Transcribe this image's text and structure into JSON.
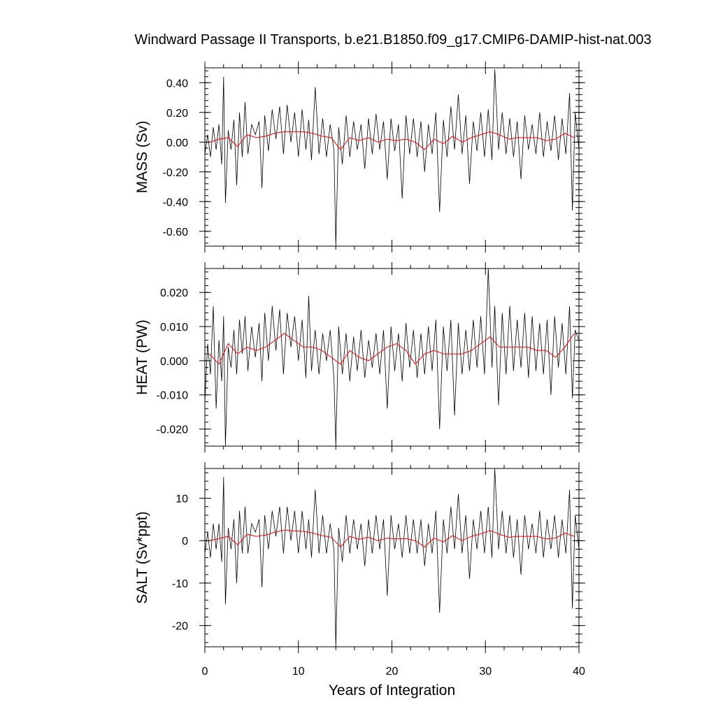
{
  "title": "Windward Passage II Transports, b.e21.B1850.f09_g17.CMIP6-DAMIP-hist-nat.003",
  "xlabel": "Years of Integration",
  "colors": {
    "raw": "#000000",
    "smooth": "#ff0000"
  },
  "chart_data": [
    {
      "type": "line",
      "ylabel": "MASS (Sv)",
      "xlim": [
        0,
        40
      ],
      "ylim": [
        -0.7,
        0.5
      ],
      "xticks": [
        0,
        10,
        20,
        30,
        40
      ],
      "yticks": [
        0.4,
        0.2,
        0.0,
        -0.2,
        -0.4,
        -0.6
      ],
      "ytick_labels": [
        "0.40",
        "0.20",
        "0.00",
        "-0.20",
        "-0.40",
        "-0.60"
      ],
      "yminor_step": 0.04,
      "series": [
        {
          "values_sampling": "monthly, estimated",
          "x": [
            0.0,
            0.3,
            0.6,
            0.9,
            1.2,
            1.5,
            1.8,
            2.0,
            2.2,
            2.5,
            2.8,
            3.1,
            3.4,
            3.7,
            4.0,
            4.3,
            4.6,
            5.0,
            5.4,
            5.8,
            6.1,
            6.4,
            6.8,
            7.2,
            7.6,
            8.0,
            8.4,
            8.8,
            9.2,
            9.6,
            10.0,
            10.4,
            10.8,
            11.1,
            11.4,
            11.8,
            12.2,
            12.6,
            13.0,
            13.4,
            13.8,
            14.0,
            14.3,
            14.7,
            15.1,
            15.5,
            15.9,
            16.3,
            16.7,
            17.1,
            17.5,
            17.9,
            18.3,
            18.7,
            19.1,
            19.5,
            19.9,
            20.3,
            20.7,
            21.1,
            21.5,
            21.9,
            22.3,
            22.7,
            23.1,
            23.5,
            23.9,
            24.3,
            24.7,
            25.1,
            25.5,
            25.9,
            26.3,
            26.7,
            27.1,
            27.5,
            27.9,
            28.3,
            28.7,
            29.1,
            29.5,
            29.9,
            30.3,
            30.7,
            31.0,
            31.4,
            31.8,
            32.2,
            32.6,
            33.0,
            33.4,
            33.8,
            34.2,
            34.6,
            35.0,
            35.4,
            35.8,
            36.2,
            36.6,
            37.0,
            37.4,
            37.8,
            38.2,
            38.6,
            39.0,
            39.3,
            39.6,
            40.0
          ],
          "y": [
            -0.08,
            0.05,
            -0.1,
            0.1,
            -0.05,
            0.12,
            -0.15,
            0.44,
            -0.41,
            0.08,
            -0.05,
            0.15,
            -0.29,
            0.2,
            -0.1,
            0.27,
            -0.08,
            0.12,
            0.05,
            0.14,
            -0.31,
            0.18,
            -0.06,
            0.22,
            0.02,
            0.24,
            -0.08,
            0.25,
            0.0,
            0.2,
            -0.1,
            0.22,
            -0.05,
            0.15,
            -0.12,
            0.37,
            -0.08,
            0.16,
            -0.1,
            0.12,
            -0.05,
            -0.7,
            0.1,
            -0.15,
            0.18,
            -0.1,
            0.14,
            -0.05,
            0.12,
            -0.18,
            0.16,
            -0.08,
            0.19,
            -0.05,
            0.14,
            -0.25,
            0.16,
            -0.06,
            0.12,
            -0.38,
            0.18,
            -0.08,
            0.16,
            -0.1,
            0.14,
            -0.2,
            0.12,
            -0.08,
            0.2,
            -0.47,
            0.15,
            -0.1,
            0.24,
            -0.05,
            0.32,
            -0.08,
            0.18,
            -0.28,
            0.14,
            -0.06,
            0.2,
            -0.1,
            0.22,
            -0.12,
            0.49,
            -0.05,
            0.2,
            -0.08,
            0.16,
            -0.1,
            0.14,
            -0.25,
            0.18,
            -0.05,
            0.12,
            -0.08,
            0.2,
            -0.1,
            0.14,
            -0.06,
            0.18,
            -0.12,
            0.16,
            -0.08,
            0.33,
            -0.46,
            0.2,
            -0.05
          ]
        },
        {
          "values_sampling": "annual mean, estimated",
          "x": [
            0.5,
            1.5,
            2.5,
            3.5,
            4.5,
            5.5,
            6.5,
            7.5,
            8.5,
            9.5,
            10.5,
            11.5,
            12.5,
            13.5,
            14.5,
            15.5,
            16.5,
            17.5,
            18.5,
            19.5,
            20.5,
            21.5,
            22.5,
            23.5,
            24.5,
            25.5,
            26.5,
            27.5,
            28.5,
            29.5,
            30.5,
            31.5,
            32.5,
            33.5,
            34.5,
            35.5,
            36.5,
            37.5,
            38.5,
            39.5
          ],
          "y": [
            0.0,
            0.02,
            0.03,
            -0.03,
            0.05,
            0.03,
            0.04,
            0.06,
            0.07,
            0.07,
            0.07,
            0.06,
            0.04,
            0.03,
            -0.05,
            0.03,
            0.01,
            0.03,
            0.0,
            0.02,
            0.01,
            0.02,
            0.0,
            -0.05,
            0.02,
            -0.01,
            0.04,
            0.0,
            0.03,
            0.05,
            0.07,
            0.05,
            0.02,
            0.03,
            0.03,
            0.03,
            0.01,
            0.02,
            0.06,
            0.03
          ]
        }
      ]
    },
    {
      "type": "line",
      "ylabel": "HEAT (PW)",
      "xlim": [
        0,
        40
      ],
      "ylim": [
        -0.025,
        0.027
      ],
      "xticks": [
        0,
        10,
        20,
        30,
        40
      ],
      "yticks": [
        0.02,
        0.01,
        0.0,
        -0.01,
        -0.02
      ],
      "ytick_labels": [
        "0.020",
        "0.010",
        "0.000",
        "-0.010",
        "-0.020"
      ],
      "yminor_step": 0.002,
      "series": [
        {
          "values_sampling": "monthly, estimated",
          "x": [
            0.0,
            0.3,
            0.6,
            0.9,
            1.2,
            1.5,
            1.8,
            2.0,
            2.2,
            2.5,
            2.8,
            3.1,
            3.4,
            3.7,
            4.0,
            4.3,
            4.6,
            5.0,
            5.4,
            5.8,
            6.1,
            6.4,
            6.8,
            7.2,
            7.6,
            8.0,
            8.4,
            8.8,
            9.2,
            9.6,
            10.0,
            10.4,
            10.8,
            11.1,
            11.4,
            11.8,
            12.2,
            12.6,
            13.0,
            13.4,
            13.8,
            14.0,
            14.3,
            14.7,
            15.1,
            15.5,
            15.9,
            16.3,
            16.7,
            17.1,
            17.5,
            17.9,
            18.3,
            18.7,
            19.1,
            19.5,
            19.9,
            20.3,
            20.7,
            21.1,
            21.5,
            21.9,
            22.3,
            22.7,
            23.1,
            23.5,
            23.9,
            24.3,
            24.7,
            25.1,
            25.5,
            25.9,
            26.3,
            26.7,
            27.1,
            27.5,
            27.9,
            28.3,
            28.7,
            29.1,
            29.5,
            29.9,
            30.3,
            30.7,
            31.0,
            31.4,
            31.8,
            32.2,
            32.6,
            33.0,
            33.4,
            33.8,
            34.2,
            34.6,
            35.0,
            35.4,
            35.8,
            36.2,
            36.6,
            37.0,
            37.4,
            37.8,
            38.2,
            38.6,
            39.0,
            39.3,
            39.6,
            40.0
          ],
          "y": [
            -0.012,
            0.005,
            -0.004,
            0.016,
            -0.014,
            0.006,
            -0.006,
            0.013,
            -0.025,
            0.004,
            -0.002,
            0.009,
            -0.004,
            0.012,
            0.002,
            0.013,
            -0.003,
            0.01,
            0.001,
            0.011,
            -0.006,
            0.014,
            0.0,
            0.016,
            0.003,
            0.015,
            -0.004,
            0.014,
            0.004,
            0.013,
            0.0,
            0.012,
            -0.005,
            0.019,
            -0.003,
            0.009,
            -0.004,
            0.008,
            0.0,
            0.009,
            -0.005,
            -0.025,
            0.01,
            -0.004,
            0.008,
            -0.006,
            0.007,
            -0.003,
            0.009,
            -0.005,
            0.006,
            -0.002,
            0.008,
            -0.004,
            0.009,
            -0.014,
            0.01,
            -0.003,
            0.008,
            -0.006,
            0.011,
            -0.002,
            0.009,
            -0.005,
            0.008,
            -0.004,
            0.01,
            -0.003,
            0.012,
            -0.02,
            0.01,
            -0.003,
            0.012,
            -0.016,
            0.011,
            -0.004,
            0.009,
            -0.003,
            0.012,
            -0.002,
            0.013,
            -0.004,
            0.027,
            -0.002,
            0.016,
            -0.013,
            0.014,
            -0.004,
            0.016,
            -0.003,
            0.012,
            -0.002,
            0.014,
            -0.005,
            0.013,
            -0.003,
            0.011,
            -0.004,
            0.012,
            -0.01,
            0.013,
            -0.002,
            0.011,
            -0.004,
            0.016,
            -0.011,
            0.009,
            0.006
          ]
        },
        {
          "values_sampling": "annual mean, estimated",
          "x": [
            0.5,
            1.5,
            2.5,
            3.5,
            4.5,
            5.5,
            6.5,
            7.5,
            8.5,
            9.5,
            10.5,
            11.5,
            12.5,
            13.5,
            14.5,
            15.5,
            16.5,
            17.5,
            18.5,
            19.5,
            20.5,
            21.5,
            22.5,
            23.5,
            24.5,
            25.5,
            26.5,
            27.5,
            28.5,
            29.5,
            30.5,
            31.5,
            32.5,
            33.5,
            34.5,
            35.5,
            36.5,
            37.5,
            38.5,
            39.5
          ],
          "y": [
            0.002,
            -0.001,
            0.005,
            0.002,
            0.004,
            0.003,
            0.004,
            0.006,
            0.008,
            0.006,
            0.004,
            0.004,
            0.003,
            0.001,
            -0.001,
            0.003,
            0.001,
            0.0,
            0.002,
            0.004,
            0.005,
            0.003,
            -0.001,
            0.002,
            0.003,
            0.002,
            0.002,
            0.002,
            0.003,
            0.005,
            0.007,
            0.004,
            0.004,
            0.004,
            0.004,
            0.003,
            0.003,
            0.001,
            0.004,
            0.008
          ]
        }
      ]
    },
    {
      "type": "line",
      "ylabel": "SALT (Sv*ppt)",
      "xlim": [
        0,
        40
      ],
      "ylim": [
        -25,
        17
      ],
      "xticks": [
        0,
        10,
        20,
        30,
        40
      ],
      "yticks": [
        10,
        0,
        -10,
        -20
      ],
      "ytick_labels": [
        "10",
        "0",
        "-10",
        "-20"
      ],
      "yminor_step": 2,
      "series": [
        {
          "values_sampling": "monthly, estimated",
          "x": [
            0.0,
            0.3,
            0.6,
            0.9,
            1.2,
            1.5,
            1.8,
            2.0,
            2.2,
            2.5,
            2.8,
            3.1,
            3.4,
            3.7,
            4.0,
            4.3,
            4.6,
            5.0,
            5.4,
            5.8,
            6.1,
            6.4,
            6.8,
            7.2,
            7.6,
            8.0,
            8.4,
            8.8,
            9.2,
            9.6,
            10.0,
            10.4,
            10.8,
            11.1,
            11.4,
            11.8,
            12.2,
            12.6,
            13.0,
            13.4,
            13.8,
            14.0,
            14.3,
            14.7,
            15.1,
            15.5,
            15.9,
            16.3,
            16.7,
            17.1,
            17.5,
            17.9,
            18.3,
            18.7,
            19.1,
            19.5,
            19.9,
            20.3,
            20.7,
            21.1,
            21.5,
            21.9,
            22.3,
            22.7,
            23.1,
            23.5,
            23.9,
            24.3,
            24.7,
            25.1,
            25.5,
            25.9,
            26.3,
            26.7,
            27.1,
            27.5,
            27.9,
            28.3,
            28.7,
            29.1,
            29.5,
            29.9,
            30.3,
            30.7,
            31.0,
            31.4,
            31.8,
            32.2,
            32.6,
            33.0,
            33.4,
            33.8,
            34.2,
            34.6,
            35.0,
            35.4,
            35.8,
            36.2,
            36.6,
            37.0,
            37.4,
            37.8,
            38.2,
            38.6,
            39.0,
            39.3,
            39.6,
            40.0
          ],
          "y": [
            -3,
            2,
            -4,
            4,
            -2,
            4,
            -5,
            15,
            -15,
            3,
            -2,
            5,
            -10,
            7,
            -3,
            8,
            -3,
            4,
            2,
            5,
            -11,
            6,
            -2,
            7,
            1,
            8,
            -3,
            8,
            0,
            7,
            -3,
            7,
            -2,
            5,
            -4,
            12,
            -3,
            6,
            -3,
            4,
            -2,
            -25,
            3,
            -5,
            6,
            -3,
            5,
            -2,
            4,
            -6,
            5,
            -3,
            6,
            -2,
            5,
            -13,
            6,
            -2,
            4,
            -4,
            6,
            -3,
            5,
            -3,
            5,
            -6,
            4,
            -3,
            7,
            -17,
            5,
            -3,
            8,
            -2,
            11,
            -3,
            6,
            -9,
            5,
            -2,
            7,
            -3,
            8,
            -4,
            17,
            -2,
            7,
            -3,
            6,
            -4,
            5,
            -8,
            6,
            -2,
            4,
            -3,
            7,
            -4,
            5,
            -2,
            6,
            -4,
            5,
            -3,
            12,
            -16,
            6,
            -2
          ]
        },
        {
          "values_sampling": "annual mean, estimated",
          "x": [
            0.5,
            1.5,
            2.5,
            3.5,
            4.5,
            5.5,
            6.5,
            7.5,
            8.5,
            9.5,
            10.5,
            11.5,
            12.5,
            13.5,
            14.5,
            15.5,
            16.5,
            17.5,
            18.5,
            19.5,
            20.5,
            21.5,
            22.5,
            23.5,
            24.5,
            25.5,
            26.5,
            27.5,
            28.5,
            29.5,
            30.5,
            31.5,
            32.5,
            33.5,
            34.5,
            35.5,
            36.5,
            37.5,
            38.5,
            39.5
          ],
          "y": [
            0.0,
            0.5,
            1.0,
            -1.0,
            1.5,
            1.0,
            1.3,
            2.0,
            2.5,
            2.3,
            2.2,
            1.8,
            1.2,
            0.8,
            -1.5,
            1.0,
            0.3,
            0.8,
            0.0,
            0.6,
            0.4,
            0.5,
            0.0,
            -1.5,
            0.6,
            -0.3,
            1.2,
            0.0,
            1.0,
            1.6,
            2.4,
            1.5,
            0.8,
            1.0,
            1.0,
            1.0,
            0.4,
            0.6,
            1.8,
            1.0
          ]
        }
      ]
    }
  ]
}
